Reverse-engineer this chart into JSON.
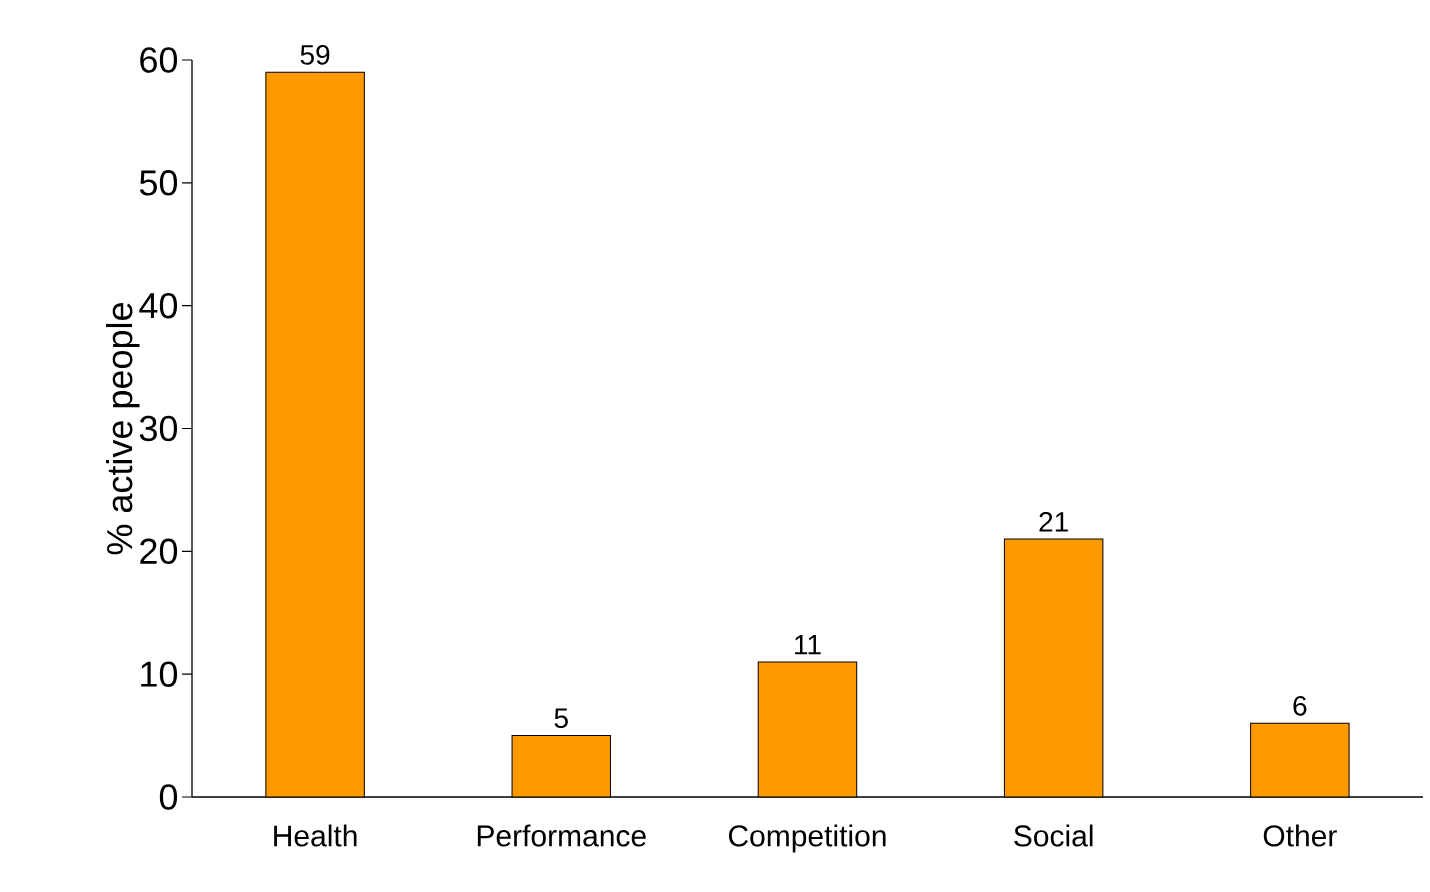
{
  "chart_data": {
    "type": "bar",
    "ylabel": "% active people",
    "categories": [
      "Health",
      "Performance",
      "Competition",
      "Social",
      "Other"
    ],
    "values": [
      59,
      5,
      11,
      21,
      6
    ],
    "color": "#ff9900",
    "data_labels": true,
    "ylim": [
      0,
      60
    ],
    "yticks": [
      0,
      10,
      20,
      30,
      40,
      50,
      60
    ]
  }
}
